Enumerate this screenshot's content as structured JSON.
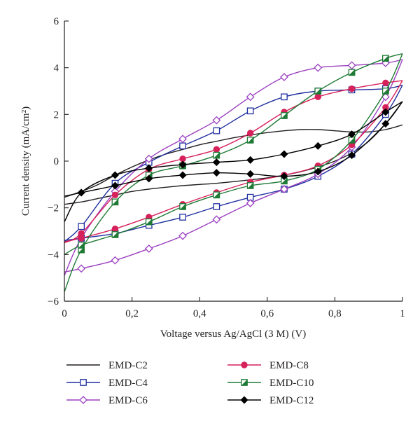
{
  "chart_data": {
    "type": "line",
    "title": "",
    "xlabel": "Voltage versus Ag/AgCl (3 M) (V)",
    "ylabel": "Current density (mA/cm²)",
    "xlim": [
      0,
      1
    ],
    "ylim": [
      -6,
      6
    ],
    "x_ticks": [
      "0",
      "0,2",
      "0,4",
      "0,6",
      "0,8",
      "1"
    ],
    "y_ticks": [
      "−6",
      "−4",
      "−2",
      "0",
      "2",
      "4",
      "6"
    ],
    "grid": false,
    "legend_position": "bottom",
    "series": [
      {
        "name": "EMD-C2",
        "color": "#231f20",
        "marker": "none",
        "forward": {
          "x": [
            0,
            0.05,
            0.1,
            0.15,
            0.2,
            0.25,
            0.3,
            0.35,
            0.4,
            0.45,
            0.5,
            0.55,
            0.6,
            0.65,
            0.7,
            0.75,
            0.8,
            0.85,
            0.9,
            0.95,
            1.0
          ],
          "y": [
            -1.55,
            -1.3,
            -1.0,
            -0.6,
            -0.25,
            0.05,
            0.3,
            0.5,
            0.7,
            0.85,
            1.0,
            1.12,
            1.22,
            1.3,
            1.35,
            1.35,
            1.3,
            1.25,
            1.25,
            1.35,
            1.55
          ]
        },
        "reverse": {
          "x": [
            1.0,
            0.95,
            0.9,
            0.85,
            0.8,
            0.75,
            0.7,
            0.65,
            0.6,
            0.55,
            0.5,
            0.45,
            0.4,
            0.35,
            0.3,
            0.25,
            0.2,
            0.15,
            0.1,
            0.05,
            0.0
          ],
          "y": [
            2.55,
            1.6,
            0.85,
            0.35,
            0.0,
            -0.25,
            -0.45,
            -0.6,
            -0.72,
            -0.8,
            -0.88,
            -0.95,
            -1.0,
            -1.05,
            -1.12,
            -1.2,
            -1.3,
            -1.45,
            -1.6,
            -1.75,
            -1.85
          ]
        }
      },
      {
        "name": "EMD-C4",
        "color": "#1f2f9e",
        "marker": "square-open",
        "forward": {
          "x": [
            0,
            0.05,
            0.15,
            0.25,
            0.35,
            0.45,
            0.55,
            0.65,
            0.75,
            0.85,
            0.95,
            1.0
          ],
          "y": [
            -3.45,
            -2.8,
            -0.95,
            -0.05,
            0.65,
            1.3,
            2.15,
            2.75,
            3.0,
            3.05,
            3.1,
            3.25
          ]
        },
        "reverse": {
          "x": [
            1.0,
            0.95,
            0.85,
            0.75,
            0.65,
            0.55,
            0.45,
            0.35,
            0.25,
            0.15,
            0.05,
            0.0
          ],
          "y": [
            3.25,
            2.0,
            0.3,
            -0.65,
            -1.2,
            -1.55,
            -1.95,
            -2.4,
            -2.75,
            -3.1,
            -3.3,
            -3.4
          ]
        }
      },
      {
        "name": "EMD-C6",
        "color": "#9b3fc0",
        "marker": "diamond-open",
        "forward": {
          "x": [
            0,
            0.05,
            0.15,
            0.25,
            0.35,
            0.45,
            0.55,
            0.65,
            0.75,
            0.85,
            0.95,
            1.0
          ],
          "y": [
            -4.9,
            -3.3,
            -1.3,
            0.1,
            0.95,
            1.75,
            2.75,
            3.6,
            4.0,
            4.1,
            4.2,
            4.35
          ]
        },
        "reverse": {
          "x": [
            1.0,
            0.95,
            0.85,
            0.75,
            0.65,
            0.55,
            0.45,
            0.35,
            0.25,
            0.15,
            0.05,
            0.0
          ],
          "y": [
            4.35,
            2.75,
            0.6,
            -0.55,
            -1.2,
            -1.8,
            -2.5,
            -3.2,
            -3.75,
            -4.25,
            -4.6,
            -4.75
          ]
        }
      },
      {
        "name": "EMD-C8",
        "color": "#d6215a",
        "marker": "circle-filled",
        "forward": {
          "x": [
            0,
            0.05,
            0.15,
            0.25,
            0.35,
            0.45,
            0.55,
            0.65,
            0.75,
            0.85,
            0.95,
            1.0
          ],
          "y": [
            -3.5,
            -3.1,
            -1.45,
            -0.35,
            0.1,
            0.5,
            1.2,
            2.1,
            2.75,
            3.1,
            3.35,
            3.45
          ]
        },
        "reverse": {
          "x": [
            1.0,
            0.95,
            0.85,
            0.75,
            0.65,
            0.55,
            0.45,
            0.35,
            0.25,
            0.15,
            0.05,
            0.0
          ],
          "y": [
            3.45,
            2.3,
            0.7,
            -0.2,
            -0.6,
            -0.9,
            -1.35,
            -1.85,
            -2.4,
            -2.9,
            -3.3,
            -3.45
          ]
        }
      },
      {
        "name": "EMD-C10",
        "color": "#1e7a34",
        "marker": "square-half",
        "forward": {
          "x": [
            0,
            0.05,
            0.15,
            0.25,
            0.35,
            0.45,
            0.55,
            0.65,
            0.75,
            0.85,
            0.95,
            1.0
          ],
          "y": [
            -5.6,
            -3.8,
            -1.75,
            -0.6,
            -0.2,
            0.25,
            0.9,
            1.95,
            3.0,
            3.8,
            4.4,
            4.6
          ]
        },
        "reverse": {
          "x": [
            1.0,
            0.95,
            0.85,
            0.75,
            0.65,
            0.55,
            0.45,
            0.35,
            0.25,
            0.15,
            0.05,
            0.0
          ],
          "y": [
            4.6,
            3.0,
            0.9,
            -0.35,
            -0.85,
            -1.05,
            -1.45,
            -1.95,
            -2.6,
            -3.15,
            -3.6,
            -4.0
          ]
        }
      },
      {
        "name": "EMD-C12",
        "color": "#000000",
        "marker": "diamond-filled",
        "forward": {
          "x": [
            0,
            0.05,
            0.15,
            0.25,
            0.35,
            0.45,
            0.55,
            0.65,
            0.75,
            0.85,
            0.95,
            1.0
          ],
          "y": [
            -2.6,
            -1.35,
            -0.6,
            -0.3,
            -0.15,
            -0.05,
            0.05,
            0.3,
            0.65,
            1.15,
            2.1,
            2.55
          ]
        },
        "reverse": {
          "x": [
            1.0,
            0.95,
            0.85,
            0.75,
            0.65,
            0.55,
            0.45,
            0.35,
            0.25,
            0.15,
            0.05,
            0.0
          ],
          "y": [
            2.55,
            1.6,
            0.25,
            -0.45,
            -0.65,
            -0.55,
            -0.5,
            -0.6,
            -0.75,
            -1.05,
            -1.35,
            -1.5
          ]
        }
      }
    ]
  }
}
